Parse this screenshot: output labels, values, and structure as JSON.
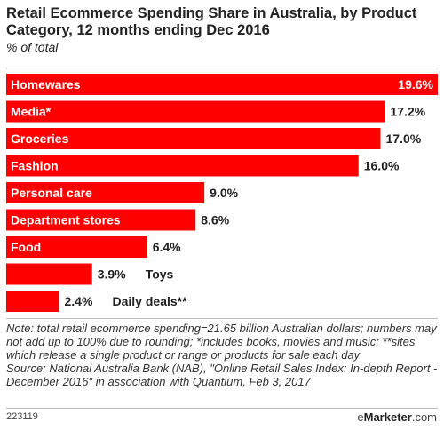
{
  "chart_data": {
    "type": "bar",
    "orientation": "horizontal",
    "title": "Retail Ecommerce Spending Share in Australia, by Product Category, 12 months ending Dec 2016",
    "subtitle": "% of total",
    "categories": [
      "Homewares",
      "Media*",
      "Groceries",
      "Fashion",
      "Personal care",
      "Department stores",
      "Food",
      "Toys",
      "Daily deals**"
    ],
    "values": [
      19.6,
      17.2,
      17.0,
      16.0,
      9.0,
      8.6,
      6.4,
      3.9,
      2.4
    ],
    "value_labels": [
      "19.6%",
      "17.2%",
      "17.0%",
      "16.0%",
      "9.0%",
      "8.6%",
      "6.4%",
      "3.9%",
      "2.4%"
    ],
    "xlim": [
      0,
      19.6
    ],
    "grid": false,
    "color": "#ff0000"
  },
  "note": "Note: total retail ecommerce spending=21.65 billion Australian dollars; numbers may not add up to 100% due to rounding; *includes books, movies and music; **sites which release a single product or range or products for sale each day",
  "source": "Source: National Australia Bank (NAB), \"Online Retail Sales Index: In-depth Report - December 2016\" in association with Quantium, Feb 3, 2017",
  "footer": {
    "chart_id": "223119",
    "brand_prefix": "e",
    "brand_name": "Marketer",
    "brand_suffix": ".com"
  }
}
